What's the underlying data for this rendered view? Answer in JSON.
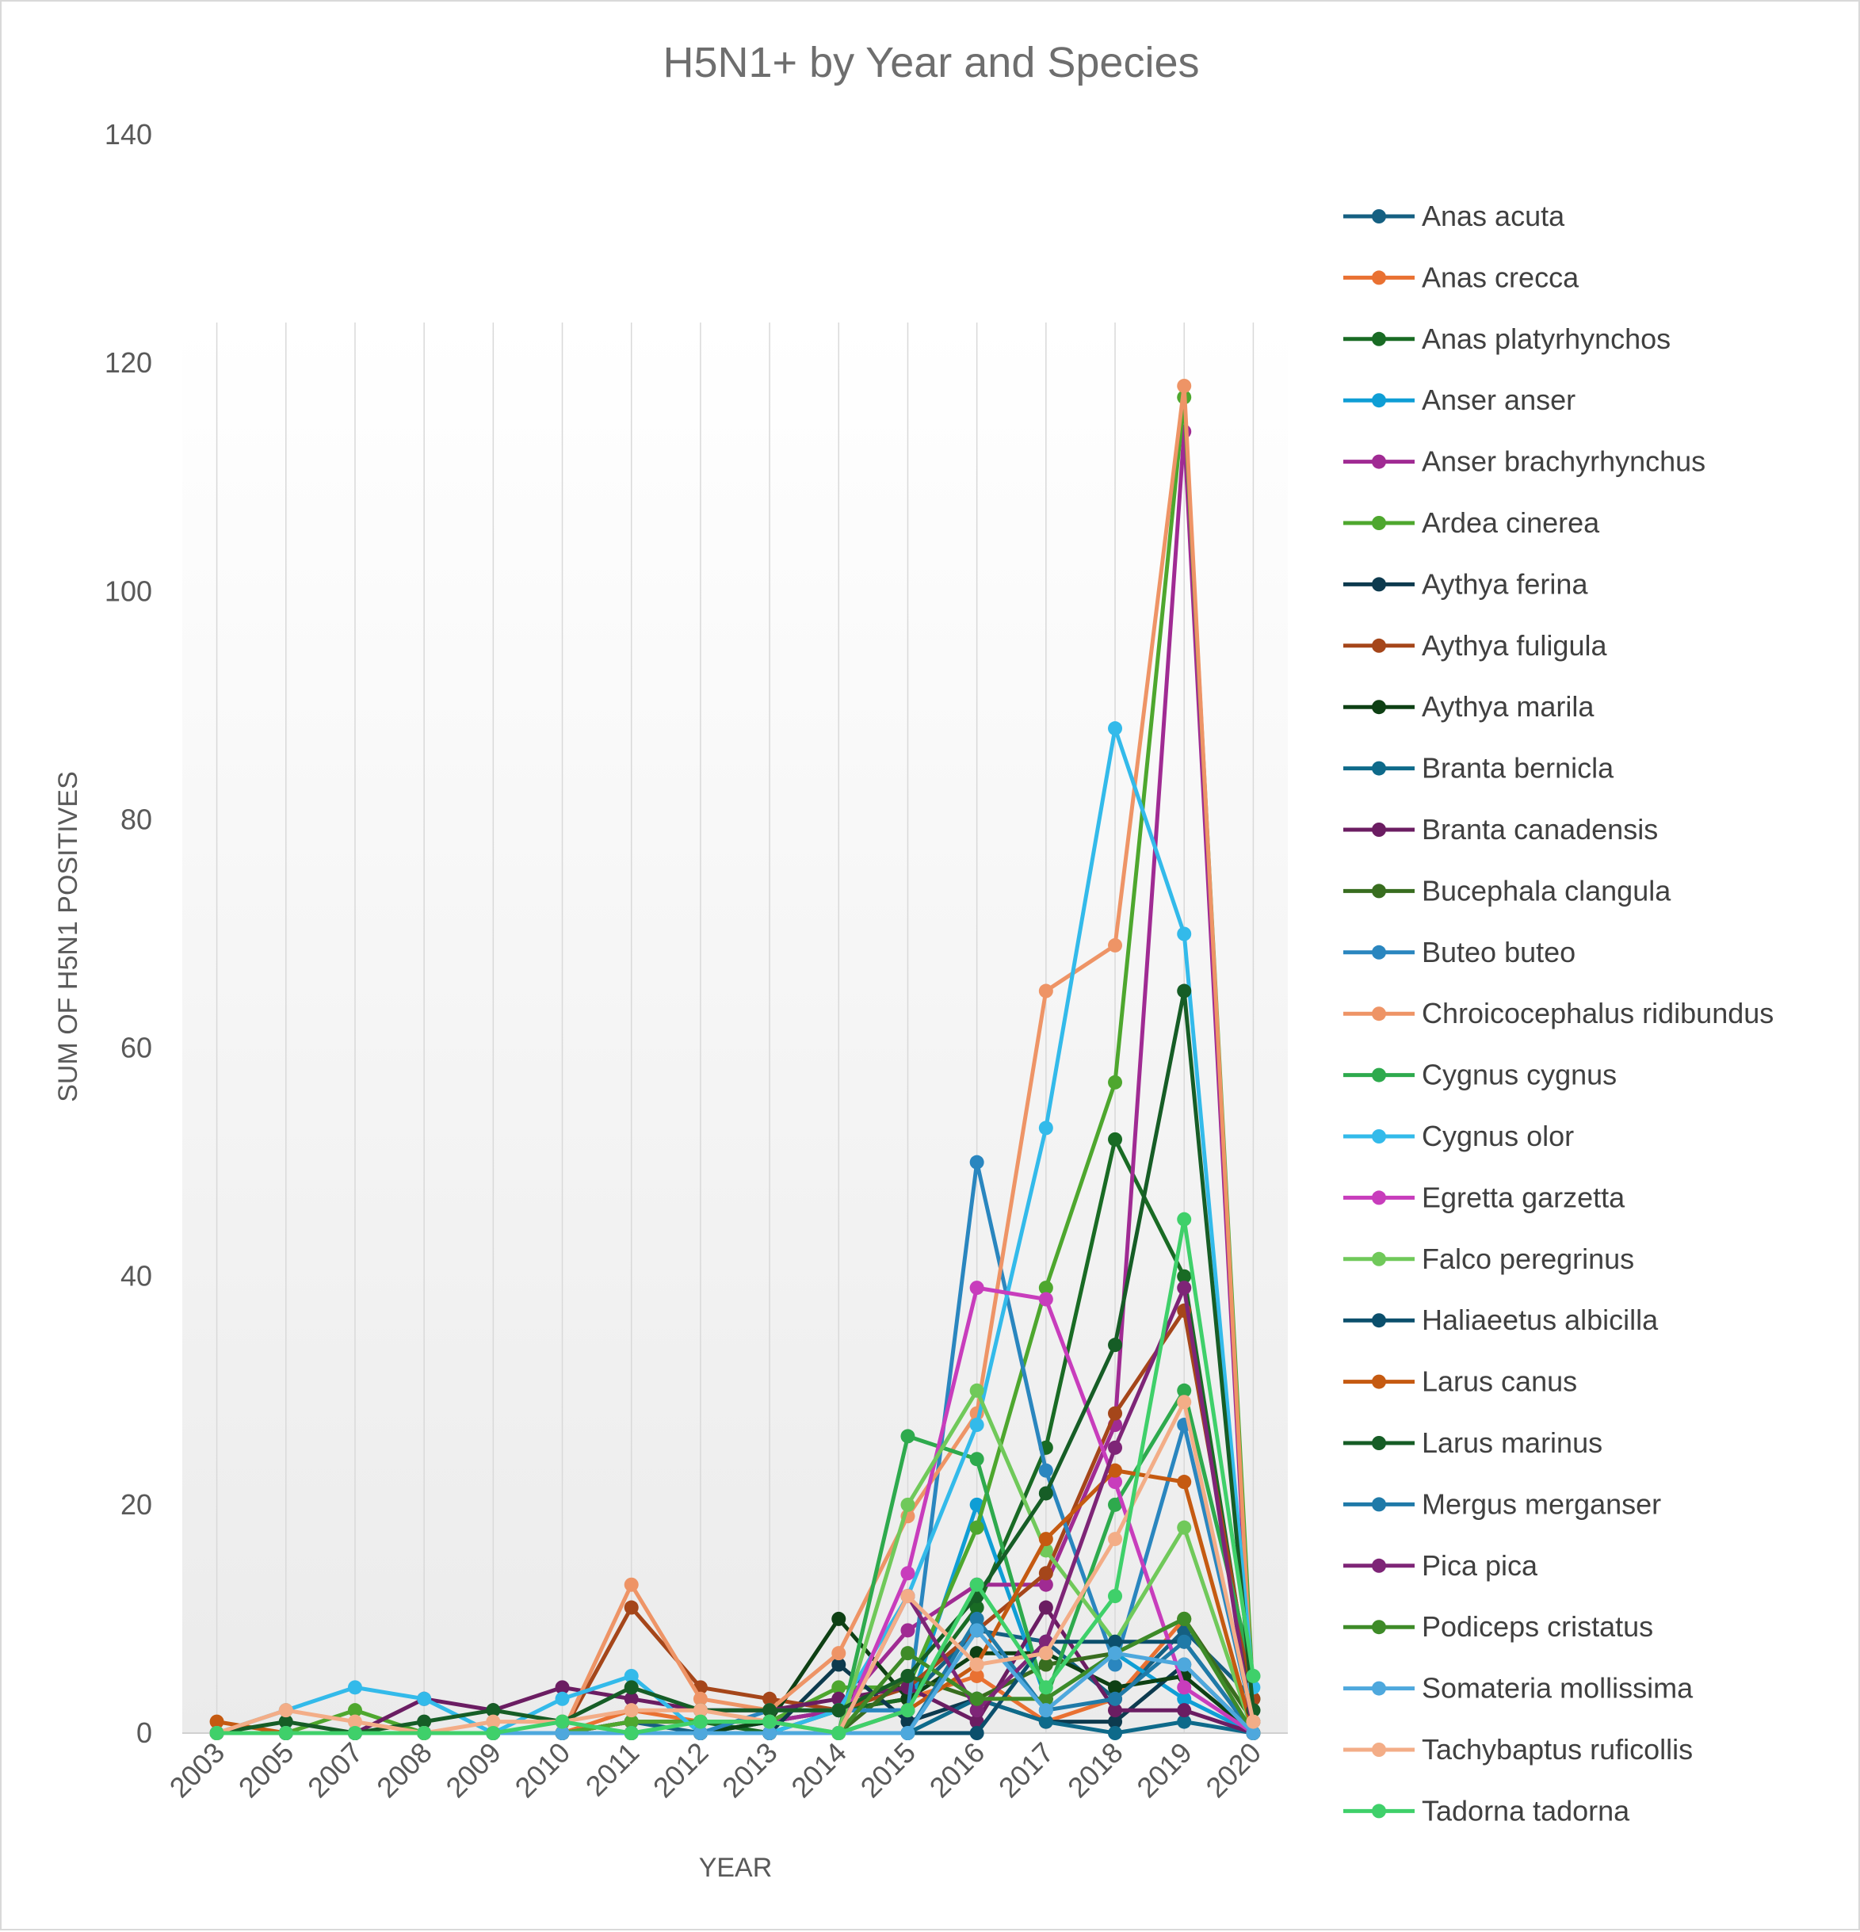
{
  "chart_data": {
    "type": "line",
    "title": "H5N1+ by Year and Species",
    "xlabel": "YEAR",
    "ylabel": "SUM OF H5N1 POSITIVES",
    "ylim": [
      0,
      140
    ],
    "yticks": [
      0,
      20,
      40,
      60,
      80,
      100,
      120,
      140
    ],
    "categories": [
      "2003",
      "2005",
      "2007",
      "2008",
      "2009",
      "2010",
      "2011",
      "2012",
      "2013",
      "2014",
      "2015",
      "2016",
      "2017",
      "2018",
      "2019",
      "2020"
    ],
    "legend_position": "right",
    "grid": "vertical",
    "series": [
      {
        "name": "Anas acuta",
        "color": "#156082",
        "values": [
          0,
          0,
          0,
          0,
          0,
          0,
          1,
          0,
          1,
          2,
          3,
          9,
          8,
          3,
          9,
          3
        ]
      },
      {
        "name": "Anas crecca",
        "color": "#e97132",
        "values": [
          0,
          0,
          0,
          0,
          0,
          0,
          2,
          1,
          1,
          2,
          3,
          5,
          1,
          3,
          10,
          1
        ]
      },
      {
        "name": "Anas platyrhynchos",
        "color": "#196b24",
        "values": [
          0,
          0,
          0,
          0,
          0,
          0,
          1,
          1,
          0,
          2,
          3,
          11,
          25,
          52,
          40,
          2
        ]
      },
      {
        "name": "Anser anser",
        "color": "#0f9ed5",
        "values": [
          0,
          0,
          0,
          0,
          0,
          0,
          0,
          0,
          1,
          2,
          2,
          20,
          3,
          7,
          3,
          0
        ]
      },
      {
        "name": "Anser brachyrhynchus",
        "color": "#a02b93",
        "values": [
          0,
          0,
          0,
          0,
          0,
          0,
          1,
          1,
          1,
          2,
          9,
          13,
          13,
          27,
          114,
          0
        ]
      },
      {
        "name": "Ardea cinerea",
        "color": "#4ea72e",
        "values": [
          0,
          0,
          2,
          0,
          0,
          0,
          1,
          1,
          1,
          4,
          4,
          18,
          39,
          57,
          117,
          3
        ]
      },
      {
        "name": "Aythya ferina",
        "color": "#0d3a4e",
        "values": [
          0,
          0,
          0,
          0,
          0,
          0,
          0,
          0,
          0,
          6,
          1,
          3,
          1,
          1,
          6,
          0
        ]
      },
      {
        "name": "Aythya fuligula",
        "color": "#a5461a",
        "values": [
          0,
          0,
          0,
          0,
          0,
          0,
          11,
          4,
          3,
          2,
          4,
          9,
          14,
          28,
          37,
          3
        ]
      },
      {
        "name": "Aythya marila",
        "color": "#0e4014",
        "values": [
          0,
          0,
          0,
          0,
          0,
          0,
          0,
          0,
          1,
          10,
          3,
          7,
          7,
          4,
          5,
          0
        ]
      },
      {
        "name": "Branta bernicla",
        "color": "#0e6a8a",
        "values": [
          0,
          0,
          0,
          0,
          0,
          0,
          0,
          0,
          0,
          0,
          0,
          3,
          1,
          0,
          1,
          0
        ]
      },
      {
        "name": "Branta canadensis",
        "color": "#6b1d62",
        "values": [
          0,
          0,
          0,
          3,
          2,
          4,
          3,
          2,
          2,
          3,
          4,
          1,
          11,
          2,
          2,
          0
        ]
      },
      {
        "name": "Bucephala clangula",
        "color": "#386d1f",
        "values": [
          0,
          0,
          0,
          0,
          0,
          0,
          0,
          0,
          0,
          0,
          5,
          3,
          6,
          7,
          10,
          1
        ]
      },
      {
        "name": "Buteo buteo",
        "color": "#2a86bf",
        "values": [
          0,
          0,
          0,
          0,
          0,
          0,
          0,
          0,
          2,
          2,
          2,
          50,
          23,
          6,
          27,
          1
        ]
      },
      {
        "name": "Chroicocephalus ridibundus",
        "color": "#ee9466",
        "values": [
          0,
          0,
          0,
          0,
          0,
          0,
          13,
          3,
          2,
          7,
          19,
          28,
          65,
          69,
          118,
          1
        ]
      },
      {
        "name": "Cygnus cygnus",
        "color": "#2eaa4d",
        "values": [
          0,
          0,
          0,
          0,
          0,
          0,
          0,
          0,
          0,
          0,
          26,
          24,
          3,
          20,
          30,
          5
        ]
      },
      {
        "name": "Cygnus olor",
        "color": "#33baea",
        "values": [
          0,
          2,
          4,
          3,
          0,
          3,
          5,
          0,
          0,
          2,
          12,
          27,
          53,
          88,
          70,
          4
        ]
      },
      {
        "name": "Egretta garzetta",
        "color": "#c83dbc",
        "values": [
          0,
          0,
          0,
          0,
          0,
          0,
          0,
          0,
          0,
          0,
          14,
          39,
          38,
          22,
          4,
          0
        ]
      },
      {
        "name": "Falco peregrinus",
        "color": "#70c95a",
        "values": [
          0,
          0,
          0,
          0,
          0,
          0,
          0,
          0,
          0,
          0,
          20,
          30,
          16,
          8,
          18,
          0
        ]
      },
      {
        "name": "Haliaeetus albicilla",
        "color": "#0b4f6c",
        "values": [
          0,
          0,
          0,
          0,
          0,
          0,
          0,
          0,
          0,
          0,
          0,
          0,
          8,
          8,
          8,
          0
        ]
      },
      {
        "name": "Larus canus",
        "color": "#c55a11",
        "values": [
          1,
          0,
          0,
          0,
          0,
          0,
          0,
          0,
          0,
          0,
          2,
          6,
          17,
          23,
          22,
          0
        ]
      },
      {
        "name": "Larus marinus",
        "color": "#165d26",
        "values": [
          0,
          1,
          0,
          1,
          2,
          1,
          4,
          2,
          2,
          2,
          5,
          12,
          21,
          34,
          65,
          2
        ]
      },
      {
        "name": "Mergus merganser",
        "color": "#1f7aa8",
        "values": [
          0,
          0,
          0,
          0,
          0,
          0,
          0,
          0,
          0,
          0,
          0,
          10,
          2,
          3,
          8,
          0
        ]
      },
      {
        "name": "Pica pica",
        "color": "#7e2577",
        "values": [
          0,
          0,
          0,
          0,
          0,
          0,
          0,
          0,
          0,
          0,
          12,
          2,
          8,
          25,
          39,
          0
        ]
      },
      {
        "name": "Podiceps cristatus",
        "color": "#3e8b28",
        "values": [
          0,
          0,
          0,
          0,
          0,
          0,
          0,
          0,
          0,
          0,
          7,
          3,
          3,
          7,
          10,
          0
        ]
      },
      {
        "name": "Somateria mollissima",
        "color": "#4ea8dd",
        "values": [
          0,
          0,
          0,
          0,
          0,
          0,
          0,
          0,
          0,
          0,
          0,
          9,
          2,
          7,
          6,
          0
        ]
      },
      {
        "name": "Tachybaptus ruficollis",
        "color": "#f3ad87",
        "values": [
          0,
          2,
          1,
          0,
          1,
          1,
          2,
          2,
          1,
          0,
          12,
          6,
          7,
          17,
          29,
          1
        ]
      },
      {
        "name": "Tadorna tadorna",
        "color": "#3fd06a",
        "values": [
          0,
          0,
          0,
          0,
          0,
          1,
          0,
          1,
          1,
          0,
          2,
          13,
          4,
          12,
          45,
          5
        ]
      }
    ]
  }
}
